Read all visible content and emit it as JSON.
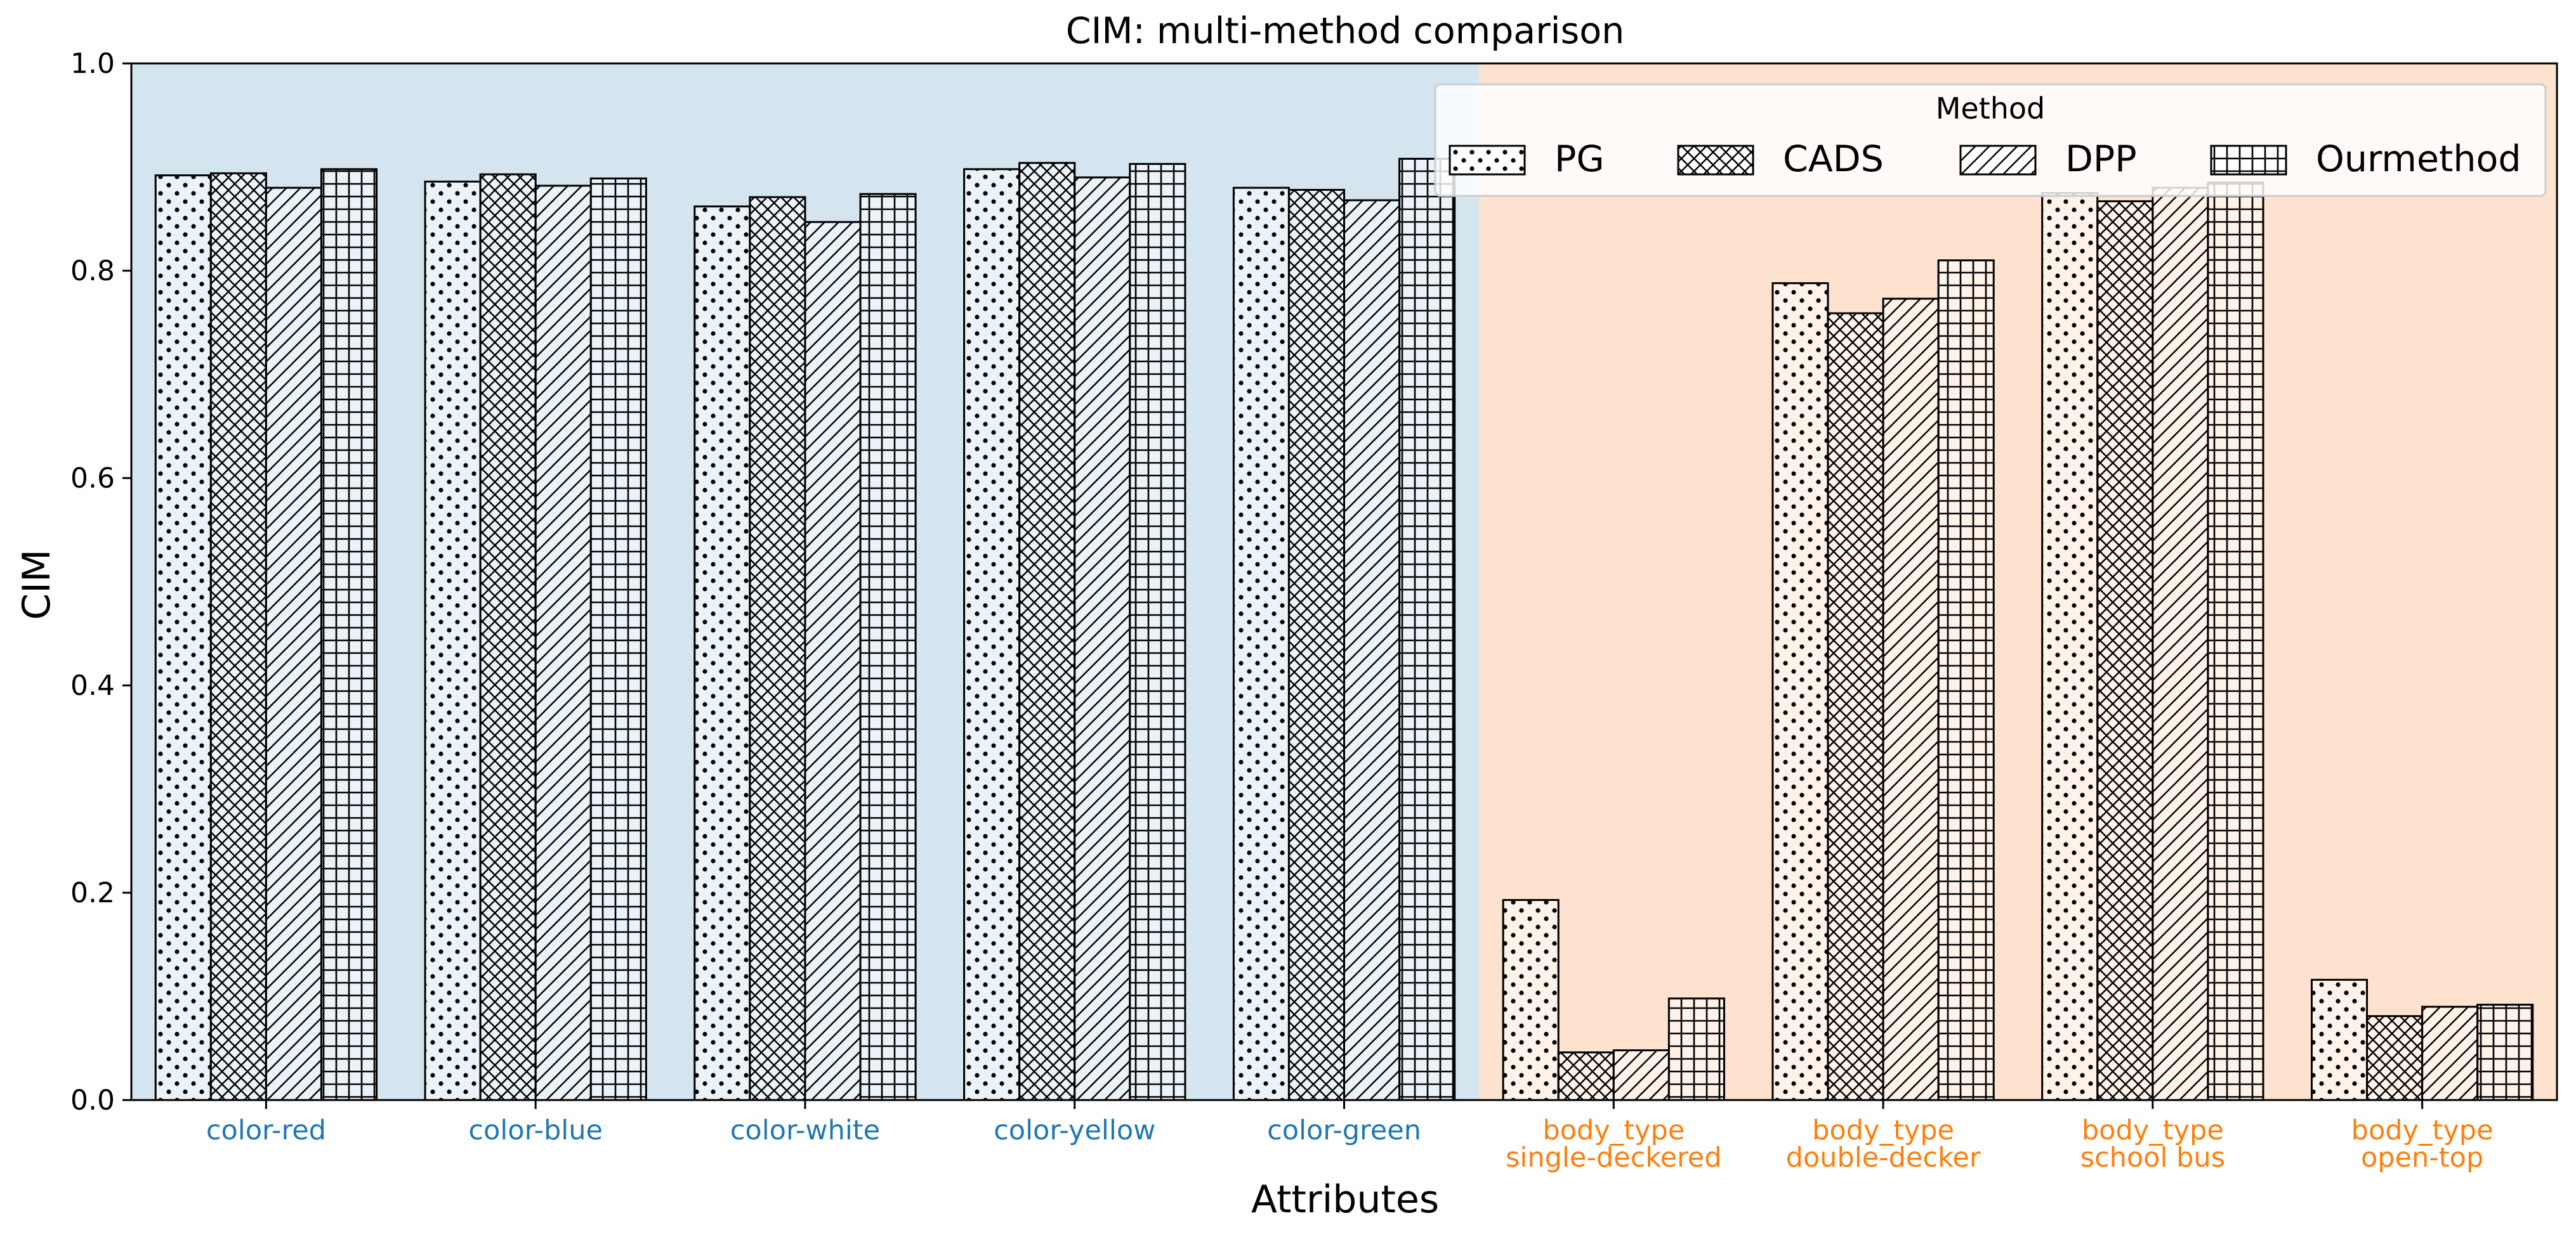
{
  "chart_data": {
    "type": "bar",
    "title": "CIM: multi-method comparison",
    "xlabel": "Attributes",
    "ylabel": "CIM",
    "ylim": [
      0,
      1.0
    ],
    "yticks": [
      "0.0",
      "0.2",
      "0.4",
      "0.6",
      "0.8",
      "1.0"
    ],
    "grid": false,
    "legend": {
      "title": "Method",
      "placement": "top-right",
      "ncol": 4
    },
    "categories": [
      {
        "lines": [
          "color-red"
        ],
        "group": "color"
      },
      {
        "lines": [
          "color-blue"
        ],
        "group": "color"
      },
      {
        "lines": [
          "color-white"
        ],
        "group": "color"
      },
      {
        "lines": [
          "color-yellow"
        ],
        "group": "color"
      },
      {
        "lines": [
          "color-green"
        ],
        "group": "color"
      },
      {
        "lines": [
          "body_type",
          "single-deckered"
        ],
        "group": "body_type"
      },
      {
        "lines": [
          "body_type",
          "double-decker"
        ],
        "group": "body_type"
      },
      {
        "lines": [
          "body_type",
          "school bus"
        ],
        "group": "body_type"
      },
      {
        "lines": [
          "body_type",
          "open-top"
        ],
        "group": "body_type"
      }
    ],
    "groups": {
      "color": {
        "label_color": "#1f77b4",
        "band_color": "#d4e5f0"
      },
      "body_type": {
        "label_color": "#ff7f0e",
        "band_color": "#fde3cf"
      }
    },
    "series": [
      {
        "name": "PG",
        "pattern": "dots",
        "values": [
          0.892,
          0.886,
          0.862,
          0.898,
          0.88,
          0.193,
          0.788,
          0.875,
          0.116
        ]
      },
      {
        "name": "CADS",
        "pattern": "crosshatch",
        "values": [
          0.894,
          0.893,
          0.871,
          0.904,
          0.878,
          0.046,
          0.759,
          0.867,
          0.081
        ]
      },
      {
        "name": "DPP",
        "pattern": "diagonal",
        "values": [
          0.88,
          0.882,
          0.847,
          0.89,
          0.868,
          0.048,
          0.773,
          0.88,
          0.09
        ]
      },
      {
        "name": "Ourmethod",
        "pattern": "grid",
        "values": [
          0.898,
          0.889,
          0.874,
          0.903,
          0.908,
          0.098,
          0.81,
          0.885,
          0.092
        ]
      }
    ]
  }
}
